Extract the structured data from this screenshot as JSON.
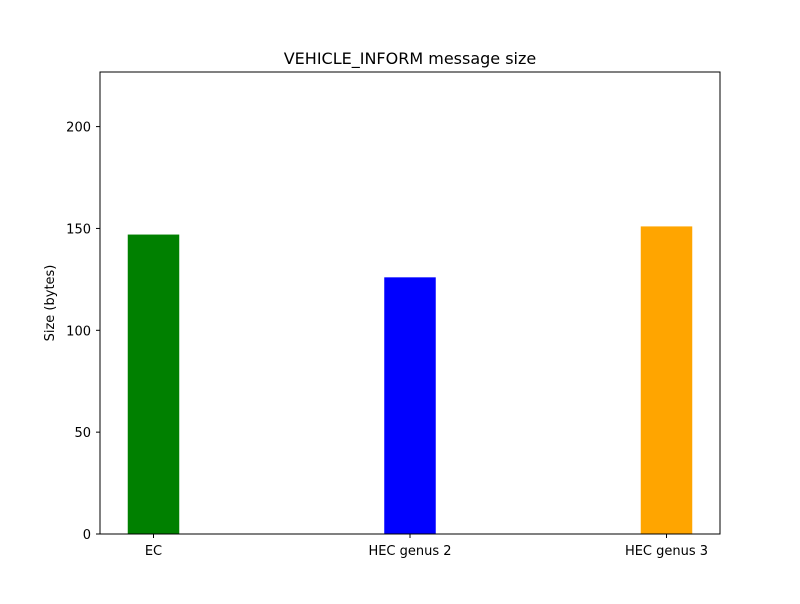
{
  "chart_data": {
    "type": "bar",
    "title": "VEHICLE_INFORM message size",
    "xlabel": "",
    "ylabel": "Size (bytes)",
    "categories": [
      "EC",
      "HEC genus 2",
      "HEC genus 3"
    ],
    "values": [
      147,
      126,
      151
    ],
    "colors": [
      "#008000",
      "#0000ff",
      "#ffa500"
    ],
    "ylim": [
      0,
      226.8
    ],
    "yticks": [
      0,
      50,
      100,
      150,
      200
    ],
    "grid": false,
    "legend": "none"
  }
}
